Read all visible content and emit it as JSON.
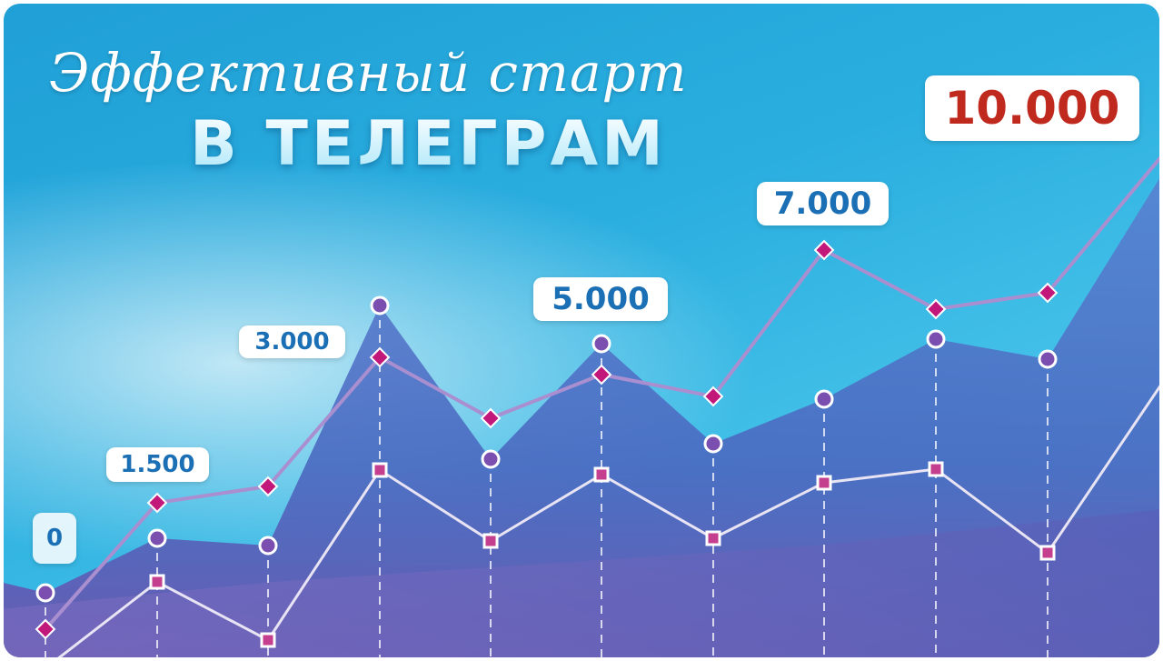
{
  "title": {
    "script_line": "Эффективный старт",
    "bold_line": "В ТЕЛЕГРАМ"
  },
  "milestones": [
    "0",
    "1.500",
    "3.000",
    "5.000",
    "7.000",
    "10.000"
  ],
  "colors": {
    "background": "#2aaedf",
    "milestone_text": "#1b6fb5",
    "final_milestone_text": "#c0291e",
    "diamond_line": "#a98fd0",
    "diamond_marker": "#c2187a",
    "circle_marker": "#7a4fb0",
    "square_line": "#e8e4f4",
    "square_marker": "#c43f8e"
  }
}
